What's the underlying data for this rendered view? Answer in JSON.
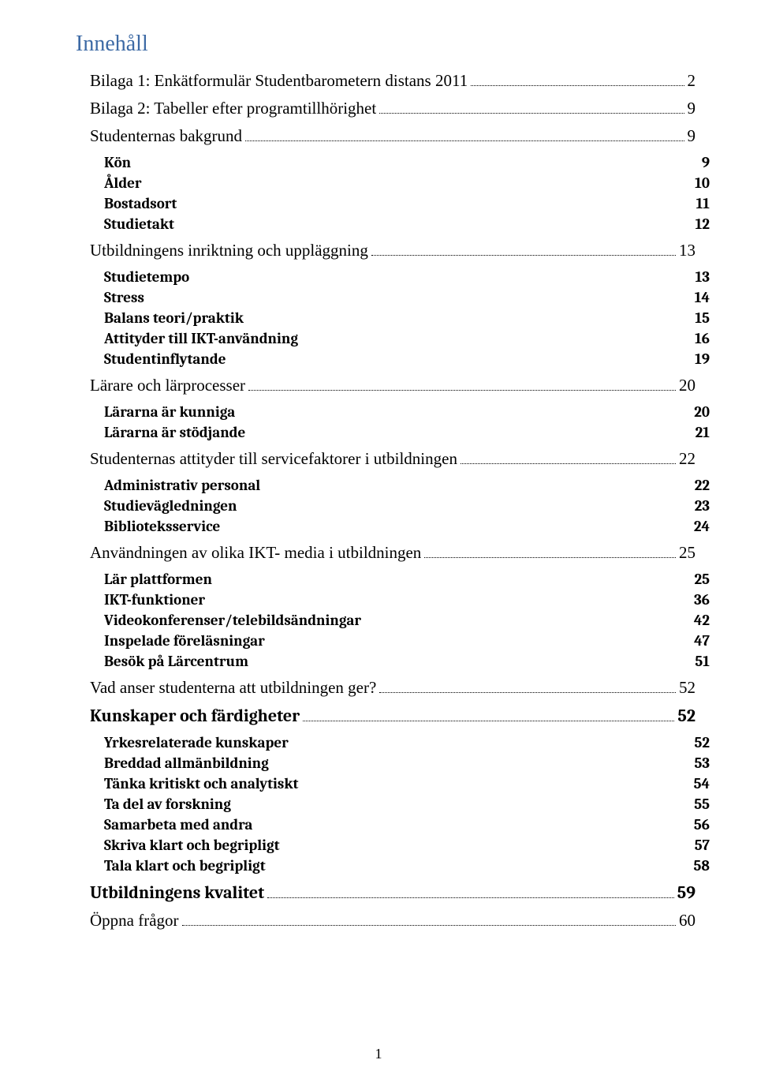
{
  "title": "Innehåll",
  "footer_page": "1",
  "toc": [
    {
      "level": "l1",
      "label": "Bilaga 1: Enkätformulär Studentbarometern distans 2011",
      "page": "2",
      "leader": true
    },
    {
      "level": "l1",
      "label": "Bilaga 2: Tabeller efter programtillhörighet",
      "page": "9",
      "leader": true
    },
    {
      "level": "l1",
      "label": "Studenternas bakgrund",
      "page": "9",
      "leader": true
    },
    {
      "level": "l2",
      "label": "Kön",
      "page": "9",
      "leader": false
    },
    {
      "level": "l2",
      "label": "Ålder",
      "page": "10",
      "leader": false
    },
    {
      "level": "l2",
      "label": "Bostadsort",
      "page": "11",
      "leader": false
    },
    {
      "level": "l2",
      "label": "Studietakt",
      "page": "12",
      "leader": false
    },
    {
      "level": "l1",
      "label": "Utbildningens inriktning och uppläggning",
      "page": "13",
      "leader": true
    },
    {
      "level": "l2",
      "label": "Studietempo",
      "page": "13",
      "leader": false
    },
    {
      "level": "l2",
      "label": "Stress",
      "page": "14",
      "leader": false
    },
    {
      "level": "l2",
      "label": "Balans teori/praktik",
      "page": "15",
      "leader": false
    },
    {
      "level": "l2",
      "label": "Attityder till IKT-användning",
      "page": "16",
      "leader": false
    },
    {
      "level": "l2",
      "label": "Studentinflytande",
      "page": "19",
      "leader": false
    },
    {
      "level": "l1",
      "label": "Lärare och lärprocesser",
      "page": "20",
      "leader": true
    },
    {
      "level": "l2",
      "label": "Lärarna är kunniga",
      "page": "20",
      "leader": false
    },
    {
      "level": "l2",
      "label": "Lärarna är stödjande",
      "page": "21",
      "leader": false
    },
    {
      "level": "l1",
      "label": "Studenternas attityder till servicefaktorer i utbildningen",
      "page": "22",
      "leader": true
    },
    {
      "level": "l2",
      "label": "Administrativ personal",
      "page": "22",
      "leader": false
    },
    {
      "level": "l2",
      "label": "Studievägledningen",
      "page": "23",
      "leader": false
    },
    {
      "level": "l2",
      "label": "Biblioteksservice",
      "page": "24",
      "leader": false
    },
    {
      "level": "l1",
      "label": "Användningen av olika IKT- media i utbildningen",
      "page": "25",
      "leader": true
    },
    {
      "level": "l2",
      "label": "Lär plattformen",
      "page": "25",
      "leader": false
    },
    {
      "level": "l2",
      "label": "IKT-funktioner",
      "page": "36",
      "leader": false
    },
    {
      "level": "l2",
      "label": "Videokonferenser/telebildsändningar",
      "page": "42",
      "leader": false
    },
    {
      "level": "l2",
      "label": "Inspelade föreläsningar",
      "page": "47",
      "leader": false
    },
    {
      "level": "l2",
      "label": "Besök på Lärcentrum",
      "page": "51",
      "leader": false
    },
    {
      "level": "l1",
      "label": "Vad anser studenterna att utbildningen ger?",
      "page": "52",
      "leader": true
    },
    {
      "level": "l1b",
      "label": "Kunskaper och färdigheter",
      "page": "52",
      "leader": true
    },
    {
      "level": "l2",
      "label": "Yrkesrelaterade kunskaper",
      "page": "52",
      "leader": false
    },
    {
      "level": "l2",
      "label": "Breddad allmänbildning",
      "page": "53",
      "leader": false
    },
    {
      "level": "l2",
      "label": "Tänka kritiskt och analytiskt",
      "page": "54",
      "leader": false
    },
    {
      "level": "l2",
      "label": "Ta del av forskning",
      "page": "55",
      "leader": false
    },
    {
      "level": "l2",
      "label": "Samarbeta med andra",
      "page": "56",
      "leader": false
    },
    {
      "level": "l2",
      "label": "Skriva klart och begripligt",
      "page": "57",
      "leader": false
    },
    {
      "level": "l2",
      "label": "Tala klart och begripligt",
      "page": "58",
      "leader": false
    },
    {
      "level": "l1b",
      "label": "Utbildningens kvalitet",
      "page": "59",
      "leader": true
    },
    {
      "level": "l1",
      "label": "Öppna frågor",
      "page": "60",
      "leader": true
    }
  ]
}
